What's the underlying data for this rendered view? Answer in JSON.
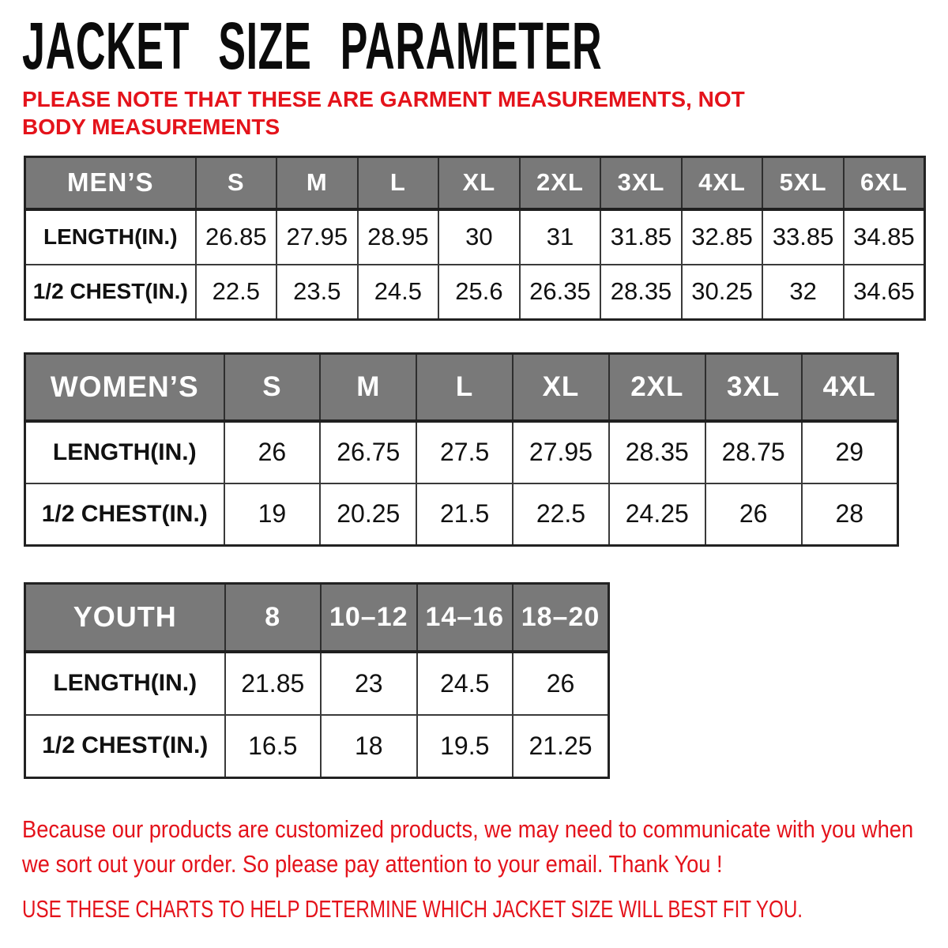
{
  "page": {
    "title": "JACKET SIZE PARAMETER",
    "note": "PLEASE NOTE THAT THESE ARE GARMENT MEASUREMENTS, NOT BODY MEASUREMENTS"
  },
  "tables": [
    {
      "id": "mens",
      "name": "MEN’S",
      "sizes": [
        "S",
        "M",
        "L",
        "XL",
        "2XL",
        "3XL",
        "4XL",
        "5XL",
        "6XL"
      ],
      "rows": [
        {
          "label": "LENGTH(IN.)",
          "values": [
            "26.85",
            "27.95",
            "28.95",
            "30",
            "31",
            "31.85",
            "32.85",
            "33.85",
            "34.85"
          ]
        },
        {
          "label": "1/2 CHEST(IN.)",
          "values": [
            "22.5",
            "23.5",
            "24.5",
            "25.6",
            "26.35",
            "28.35",
            "30.25",
            "32",
            "34.65"
          ]
        }
      ]
    },
    {
      "id": "womens",
      "name": "WOMEN’S",
      "sizes": [
        "S",
        "M",
        "L",
        "XL",
        "2XL",
        "3XL",
        "4XL"
      ],
      "rows": [
        {
          "label": "LENGTH(IN.)",
          "values": [
            "26",
            "26.75",
            "27.5",
            "27.95",
            "28.35",
            "28.75",
            "29"
          ]
        },
        {
          "label": "1/2 CHEST(IN.)",
          "values": [
            "19",
            "20.25",
            "21.5",
            "22.5",
            "24.25",
            "26",
            "28"
          ]
        }
      ]
    },
    {
      "id": "youth",
      "name": "YOUTH",
      "sizes": [
        "8",
        "10–12",
        "14–16",
        "18–20"
      ],
      "rows": [
        {
          "label": "LENGTH(IN.)",
          "values": [
            "21.85",
            "23",
            "24.5",
            "26"
          ]
        },
        {
          "label": "1/2 CHEST(IN.)",
          "values": [
            "16.5",
            "18",
            "19.5",
            "21.25"
          ]
        }
      ]
    }
  ],
  "footer": {
    "communication_note": "Because our products are customized products, we may need to communicate with you when we sort out your order. So please pay attention to your email. Thank You !",
    "usage_note": "USE THESE CHARTS TO HELP DETERMINE WHICH JACKET SIZE WILL BEST FIT YOU."
  },
  "colors": {
    "accent_red": "#E4131B",
    "header_gray": "#797979",
    "border_dark": "#2E2E2E",
    "text_black": "#111111"
  }
}
